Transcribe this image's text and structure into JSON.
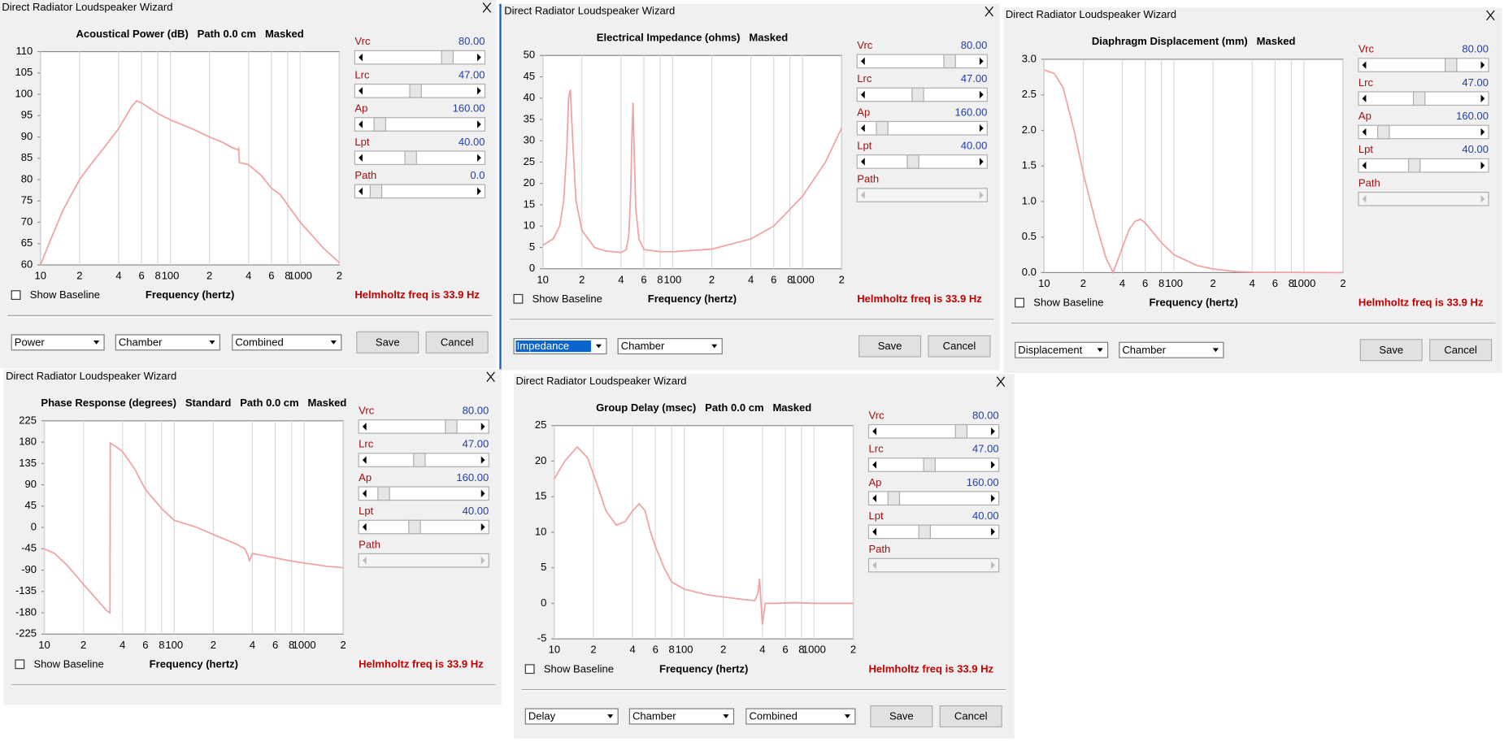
{
  "windows": [
    {
      "title": "Direct Radiator Loudspeaker Wizard",
      "chart": {
        "type": "line",
        "title": "Acoustical Power (dB)   Path 0.0 cm   Masked",
        "x_label": "Frequency (hertz)",
        "log_x": true,
        "xlim": [
          10,
          2000
        ],
        "xticks": [
          10,
          {
            "value": 20,
            "label": "2"
          },
          {
            "value": 40,
            "label": "4"
          },
          {
            "value": 60,
            "label": "6"
          },
          {
            "value": 80,
            "label": "8"
          },
          100,
          {
            "value": 200,
            "label": "2"
          },
          {
            "value": 400,
            "label": "4"
          },
          {
            "value": 600,
            "label": "6"
          },
          {
            "value": 800,
            "label": "8"
          },
          1000,
          {
            "value": 2000,
            "label": "2"
          }
        ],
        "ylim": [
          60,
          110
        ],
        "yticks": [
          60,
          65,
          70,
          75,
          80,
          85,
          90,
          95,
          100,
          105,
          110
        ],
        "grid": "x",
        "color": "#f2a2a2",
        "x": [
          10,
          12,
          15,
          20,
          25,
          30,
          40,
          50,
          55,
          60,
          80,
          100,
          150,
          200,
          250,
          300,
          330,
          335,
          340,
          400,
          500,
          600,
          700,
          1000,
          1500,
          2000
        ],
        "values": [
          60,
          66,
          73,
          80,
          84,
          87,
          92,
          97,
          98.5,
          98,
          95.5,
          94,
          91.8,
          90,
          88.8,
          87.5,
          87,
          87.3,
          84,
          83.5,
          81,
          78,
          76.5,
          70,
          64,
          60.5
        ]
      },
      "sliders": [
        {
          "label": "Vrc",
          "value": "80.00"
        },
        {
          "label": "Lrc",
          "value": "47.00"
        },
        {
          "label": "Ap",
          "value": "160.00"
        },
        {
          "label": "Lpt",
          "value": "40.00"
        },
        {
          "label": "Path",
          "value": "0.0"
        }
      ],
      "show_baseline": "Show Baseline",
      "note": "Helmholtz freq is 33.9 Hz",
      "dropdowns": [
        "Power",
        "Chamber",
        "Combined"
      ],
      "buttons": [
        "Save",
        "Cancel"
      ]
    },
    {
      "title": "Direct Radiator Loudspeaker Wizard",
      "chart": {
        "type": "line",
        "title": "Electrical Impedance (ohms)   Masked",
        "x_label": "Frequency (hertz)",
        "log_x": true,
        "xlim": [
          10,
          2000
        ],
        "xticks": [
          10,
          {
            "value": 20,
            "label": "2"
          },
          {
            "value": 40,
            "label": "4"
          },
          {
            "value": 60,
            "label": "6"
          },
          {
            "value": 80,
            "label": "8"
          },
          100,
          {
            "value": 200,
            "label": "2"
          },
          {
            "value": 400,
            "label": "4"
          },
          {
            "value": 600,
            "label": "6"
          },
          {
            "value": 800,
            "label": "8"
          },
          1000,
          {
            "value": 2000,
            "label": "2"
          }
        ],
        "ylim": [
          0,
          50
        ],
        "yticks": [
          0,
          5,
          10,
          15,
          20,
          25,
          30,
          35,
          40,
          45,
          50
        ],
        "grid": "x",
        "color": "#f2a2a2",
        "x": [
          10,
          12,
          13.5,
          14.5,
          15.3,
          15.8,
          16.3,
          17,
          18,
          20,
          25,
          30,
          40,
          44,
          46,
          47.5,
          48.5,
          49.5,
          50.5,
          52,
          55,
          60,
          80,
          100,
          200,
          400,
          600,
          1000,
          1500,
          2000
        ],
        "values": [
          5.5,
          7,
          10,
          16,
          28,
          40,
          42,
          30,
          16,
          9,
          5,
          4.2,
          3.8,
          4.5,
          8,
          18,
          30,
          39,
          28,
          14,
          7,
          4.5,
          4,
          4,
          4.6,
          7,
          10,
          17,
          25,
          33
        ]
      },
      "sliders": [
        {
          "label": "Vrc",
          "value": "80.00"
        },
        {
          "label": "Lrc",
          "value": "47.00"
        },
        {
          "label": "Ap",
          "value": "160.00"
        },
        {
          "label": "Lpt",
          "value": "40.00"
        },
        {
          "label": "Path"
        }
      ],
      "show_baseline": "Show Baseline",
      "note": "Helmholtz freq is 33.9 Hz",
      "dropdowns": [
        "Impedance",
        "Chamber"
      ],
      "buttons": [
        "Save",
        "Cancel"
      ]
    },
    {
      "title": "Direct Radiator Loudspeaker Wizard",
      "chart": {
        "type": "line",
        "title": "Diaphragm Displacement (mm)   Masked",
        "x_label": "Frequency (hertz)",
        "log_x": true,
        "xlim": [
          10,
          2000
        ],
        "xticks": [
          10,
          {
            "value": 20,
            "label": "2"
          },
          {
            "value": 40,
            "label": "4"
          },
          {
            "value": 60,
            "label": "6"
          },
          {
            "value": 80,
            "label": "8"
          },
          100,
          {
            "value": 200,
            "label": "2"
          },
          {
            "value": 400,
            "label": "4"
          },
          {
            "value": 600,
            "label": "6"
          },
          {
            "value": 800,
            "label": "8"
          },
          1000,
          {
            "value": 2000,
            "label": "2"
          }
        ],
        "ylim": [
          0,
          3
        ],
        "yticks": [
          {
            "value": 0,
            "label": "0.0"
          },
          0.5,
          {
            "value": 1,
            "label": "1.0"
          },
          1.5,
          {
            "value": 2,
            "label": "2.0"
          },
          2.5,
          {
            "value": 3,
            "label": "3.0"
          }
        ],
        "grid": "x",
        "color": "#f2a2a2",
        "x": [
          10,
          12,
          14,
          17,
          20,
          25,
          30,
          34,
          40,
          45,
          50,
          55,
          60,
          70,
          80,
          100,
          150,
          200,
          300,
          400,
          2000
        ],
        "values": [
          2.85,
          2.8,
          2.6,
          2.0,
          1.4,
          0.7,
          0.2,
          0.0,
          0.35,
          0.6,
          0.72,
          0.75,
          0.7,
          0.55,
          0.42,
          0.25,
          0.1,
          0.05,
          0.015,
          0.005,
          0
        ]
      },
      "sliders": [
        {
          "label": "Vrc",
          "value": "80.00"
        },
        {
          "label": "Lrc",
          "value": "47.00"
        },
        {
          "label": "Ap",
          "value": "160.00"
        },
        {
          "label": "Lpt",
          "value": "40.00"
        },
        {
          "label": "Path"
        }
      ],
      "show_baseline": "Show Baseline",
      "note": "Helmholtz freq is 33.9 Hz",
      "dropdowns": [
        "Displacement",
        "Chamber"
      ],
      "buttons": [
        "Save",
        "Cancel"
      ]
    },
    {
      "title": "Direct Radiator Loudspeaker Wizard",
      "chart": {
        "type": "line",
        "title": "Phase Response (degrees)   Standard   Path 0.0 cm   Masked",
        "x_label": "Frequency (hertz)",
        "log_x": true,
        "xlim": [
          10,
          2000
        ],
        "xticks": [
          10,
          {
            "value": 20,
            "label": "2"
          },
          {
            "value": 40,
            "label": "4"
          },
          {
            "value": 60,
            "label": "6"
          },
          {
            "value": 80,
            "label": "8"
          },
          100,
          {
            "value": 200,
            "label": "2"
          },
          {
            "value": 400,
            "label": "4"
          },
          {
            "value": 600,
            "label": "6"
          },
          {
            "value": 800,
            "label": "8"
          },
          1000,
          {
            "value": 2000,
            "label": "2"
          }
        ],
        "ylim": [
          -225,
          225
        ],
        "yticks": [
          -225,
          -180,
          -135,
          -90,
          -45,
          0,
          45,
          90,
          135,
          180,
          225
        ],
        "grid": "x",
        "color": "#f2a2a2",
        "x": [
          10,
          12,
          15,
          20,
          25,
          30,
          32,
          32.2,
          35,
          40,
          50,
          60,
          80,
          100,
          150,
          200,
          300,
          350,
          370,
          380,
          400,
          500,
          700,
          1000,
          1500,
          2000
        ],
        "values": [
          -45,
          -55,
          -80,
          -120,
          -150,
          -175,
          -180,
          178,
          172,
          160,
          122,
          80,
          40,
          15,
          0,
          -15,
          -35,
          -45,
          -60,
          -70,
          -55,
          -60,
          -68,
          -75,
          -82,
          -85
        ]
      },
      "sliders": [
        {
          "label": "Vrc",
          "value": "80.00"
        },
        {
          "label": "Lrc",
          "value": "47.00"
        },
        {
          "label": "Ap",
          "value": "160.00"
        },
        {
          "label": "Lpt",
          "value": "40.00"
        },
        {
          "label": "Path"
        }
      ],
      "show_baseline": "Show Baseline",
      "note": "Helmholtz freq is 33.9 Hz"
    },
    {
      "title": "Direct Radiator Loudspeaker Wizard",
      "chart": {
        "type": "line",
        "title": "Group Delay (msec)   Path 0.0 cm   Masked",
        "x_label": "Frequency (hertz)",
        "log_x": true,
        "xlim": [
          10,
          2000
        ],
        "xticks": [
          10,
          {
            "value": 20,
            "label": "2"
          },
          {
            "value": 40,
            "label": "4"
          },
          {
            "value": 60,
            "label": "6"
          },
          {
            "value": 80,
            "label": "8"
          },
          100,
          {
            "value": 200,
            "label": "2"
          },
          {
            "value": 400,
            "label": "4"
          },
          {
            "value": 600,
            "label": "6"
          },
          {
            "value": 800,
            "label": "8"
          },
          1000,
          {
            "value": 2000,
            "label": "2"
          }
        ],
        "ylim": [
          -5,
          25
        ],
        "yticks": [
          -5,
          0,
          5,
          10,
          15,
          20,
          25
        ],
        "grid": "x",
        "color": "#f2a2a2",
        "x": [
          10,
          12,
          15,
          18,
          22,
          25,
          30,
          35,
          40,
          45,
          50,
          55,
          60,
          70,
          80,
          100,
          150,
          200,
          300,
          350,
          370,
          380,
          390,
          400,
          420,
          500,
          700,
          1000,
          2000
        ],
        "values": [
          17.5,
          20,
          22,
          20.5,
          16,
          13,
          11,
          11.5,
          13,
          14,
          13,
          10,
          8,
          5,
          3,
          2,
          1.2,
          0.9,
          0.5,
          0.4,
          1.5,
          3.5,
          0,
          -3,
          0,
          0,
          0.1,
          0,
          0
        ]
      },
      "sliders": [
        {
          "label": "Vrc",
          "value": "80.00"
        },
        {
          "label": "Lrc",
          "value": "47.00"
        },
        {
          "label": "Ap",
          "value": "160.00"
        },
        {
          "label": "Lpt",
          "value": "40.00"
        },
        {
          "label": "Path"
        }
      ],
      "show_baseline": "Show Baseline",
      "note": "Helmholtz freq is 33.9 Hz",
      "dropdowns": [
        "Delay",
        "Chamber",
        "Combined"
      ],
      "buttons": [
        "Save",
        "Cancel"
      ]
    }
  ]
}
